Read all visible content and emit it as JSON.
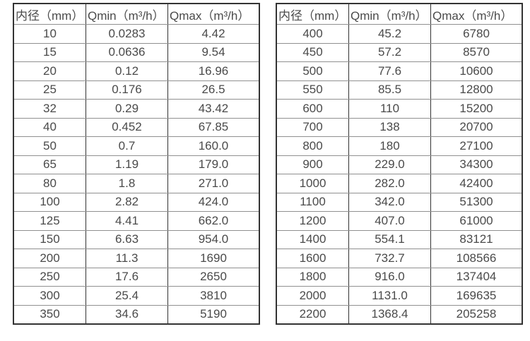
{
  "colors": {
    "background": "#ffffff",
    "border_dark": "#333333",
    "border_light": "#909090",
    "text": "#4a4a4a"
  },
  "tables": [
    {
      "name": "flow-range-table-small-diameters",
      "headers": [
        "内径（mm）",
        "Qmin（m³/h）",
        "Qmax（m³/h）"
      ],
      "rows": [
        [
          "10",
          "0.0283",
          "4.42"
        ],
        [
          "15",
          "0.0636",
          "9.54"
        ],
        [
          "20",
          "0.12",
          "16.96"
        ],
        [
          "25",
          "0.176",
          "26.5"
        ],
        [
          "32",
          "0.29",
          "43.42"
        ],
        [
          "40",
          "0.452",
          "67.85"
        ],
        [
          "50",
          "0.7",
          "160.0"
        ],
        [
          "65",
          "1.19",
          "179.0"
        ],
        [
          "80",
          "1.8",
          "271.0"
        ],
        [
          "100",
          "2.82",
          "424.0"
        ],
        [
          "125",
          "4.41",
          "662.0"
        ],
        [
          "150",
          "6.63",
          "954.0"
        ],
        [
          "200",
          "11.3",
          "1690"
        ],
        [
          "250",
          "17.6",
          "2650"
        ],
        [
          "300",
          "25.4",
          "3810"
        ],
        [
          "350",
          "34.6",
          "5190"
        ]
      ]
    },
    {
      "name": "flow-range-table-large-diameters",
      "headers": [
        "内径（mm）",
        "Qmin（m³/h）",
        "Qmax（m³/h）"
      ],
      "rows": [
        [
          "400",
          "45.2",
          "6780"
        ],
        [
          "450",
          "57.2",
          "8570"
        ],
        [
          "500",
          "77.6",
          "10600"
        ],
        [
          "550",
          "85.5",
          "12800"
        ],
        [
          "600",
          "110",
          "15200"
        ],
        [
          "700",
          "138",
          "20700"
        ],
        [
          "800",
          "180",
          "27100"
        ],
        [
          "900",
          "229.0",
          "34300"
        ],
        [
          "1000",
          "282.0",
          "42400"
        ],
        [
          "1100",
          "342.0",
          "51300"
        ],
        [
          "1200",
          "407.0",
          "61000"
        ],
        [
          "1400",
          "554.1",
          "83121"
        ],
        [
          "1600",
          "732.7",
          "108566"
        ],
        [
          "1800",
          "916.0",
          "137404"
        ],
        [
          "2000",
          "1131.0",
          "169635"
        ],
        [
          "2200",
          "1368.4",
          "205258"
        ]
      ]
    }
  ]
}
